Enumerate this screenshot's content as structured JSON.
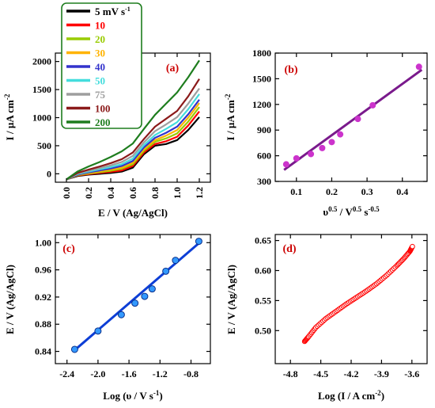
{
  "chart_data": [
    {
      "id": "a",
      "type": "line",
      "panel_label": "(a)",
      "xlabel": "E / V (Ag/AgCl)",
      "ylabel": "I / µA cm",
      "ylabel_sup": "-2",
      "xlim": [
        -0.1,
        1.3
      ],
      "ylim": [
        -150,
        2150
      ],
      "xticks": [
        "0.0",
        "0.2",
        "0.4",
        "0.6",
        "0.8",
        "1.0",
        "1.2"
      ],
      "yticks": [
        "0",
        "500",
        "1000",
        "1500",
        "2000"
      ],
      "legend": {
        "placement": "top-left",
        "first_unit": " mV s",
        "first_unit_sup": "-1"
      },
      "series": [
        {
          "name": "5",
          "color": "#000000",
          "x": [
            0.0,
            0.1,
            0.2,
            0.3,
            0.4,
            0.5,
            0.6,
            0.7,
            0.8,
            0.9,
            1.0,
            1.1,
            1.2
          ],
          "values": [
            -100,
            -40,
            -15,
            0,
            15,
            40,
            110,
            350,
            500,
            530,
            600,
            780,
            1010
          ]
        },
        {
          "name": "10",
          "color": "#ff0000",
          "x": [
            0.0,
            0.1,
            0.2,
            0.3,
            0.4,
            0.5,
            0.6,
            0.7,
            0.8,
            0.9,
            1.0,
            1.1,
            1.2
          ],
          "values": [
            -100,
            -30,
            -5,
            15,
            35,
            60,
            140,
            380,
            530,
            580,
            660,
            860,
            1110
          ]
        },
        {
          "name": "20",
          "color": "#99cc00",
          "x": [
            0.0,
            0.1,
            0.2,
            0.3,
            0.4,
            0.5,
            0.6,
            0.7,
            0.8,
            0.9,
            1.0,
            1.1,
            1.2
          ],
          "values": [
            -100,
            -25,
            5,
            30,
            55,
            90,
            170,
            410,
            570,
            630,
            720,
            930,
            1190
          ]
        },
        {
          "name": "30",
          "color": "#ffb300",
          "x": [
            0.0,
            0.1,
            0.2,
            0.3,
            0.4,
            0.5,
            0.6,
            0.7,
            0.8,
            0.9,
            1.0,
            1.1,
            1.2
          ],
          "values": [
            -100,
            -20,
            15,
            45,
            75,
            110,
            200,
            440,
            600,
            680,
            780,
            1000,
            1260
          ]
        },
        {
          "name": "40",
          "color": "#3333cc",
          "x": [
            0.0,
            0.1,
            0.2,
            0.3,
            0.4,
            0.5,
            0.6,
            0.7,
            0.8,
            0.9,
            1.0,
            1.1,
            1.2
          ],
          "values": [
            -100,
            -15,
            25,
            60,
            95,
            140,
            230,
            470,
            640,
            730,
            840,
            1060,
            1320
          ]
        },
        {
          "name": "50",
          "color": "#44dddd",
          "x": [
            0.0,
            0.1,
            0.2,
            0.3,
            0.4,
            0.5,
            0.6,
            0.7,
            0.8,
            0.9,
            1.0,
            1.1,
            1.2
          ],
          "values": [
            -100,
            -5,
            40,
            80,
            120,
            170,
            270,
            510,
            690,
            800,
            920,
            1150,
            1420
          ]
        },
        {
          "name": "75",
          "color": "#9e9e9e",
          "x": [
            0.0,
            0.1,
            0.2,
            0.3,
            0.4,
            0.5,
            0.6,
            0.7,
            0.8,
            0.9,
            1.0,
            1.1,
            1.2
          ],
          "values": [
            -100,
            5,
            55,
            100,
            150,
            210,
            320,
            560,
            760,
            880,
            1010,
            1250,
            1520
          ]
        },
        {
          "name": "100",
          "color": "#8b1a1a",
          "x": [
            0.0,
            0.1,
            0.2,
            0.3,
            0.4,
            0.5,
            0.6,
            0.7,
            0.8,
            0.9,
            1.0,
            1.1,
            1.2
          ],
          "values": [
            -100,
            15,
            75,
            130,
            190,
            260,
            380,
            620,
            840,
            980,
            1120,
            1380,
            1690
          ]
        },
        {
          "name": "200",
          "color": "#1e7d1e",
          "x": [
            0.0,
            0.1,
            0.2,
            0.3,
            0.4,
            0.5,
            0.6,
            0.7,
            0.8,
            0.9,
            1.0,
            1.1,
            1.2
          ],
          "values": [
            -100,
            40,
            130,
            210,
            300,
            400,
            540,
            800,
            1050,
            1250,
            1450,
            1720,
            2020
          ]
        }
      ]
    },
    {
      "id": "b",
      "type": "scatter",
      "panel_label": "(b)",
      "xlabel_main": "υ",
      "xlabel_sup1": "0.5",
      "xlabel_mid": " / V",
      "xlabel_sup2": "0.5",
      "xlabel_mid2": " s",
      "xlabel_sup3": "-0.5",
      "ylabel": "I / µA cm",
      "ylabel_sup": "-2",
      "xlim": [
        0.04,
        0.47
      ],
      "ylim": [
        300,
        1800
      ],
      "xticks": [
        "0.1",
        "0.2",
        "0.3",
        "0.4"
      ],
      "yticks": [
        "300",
        "600",
        "900",
        "1200",
        "1500",
        "1800"
      ],
      "points_color": "#cc33cc",
      "fit_color": "#7a1a8c",
      "points": [
        {
          "x": 0.071,
          "y": 500
        },
        {
          "x": 0.1,
          "y": 570
        },
        {
          "x": 0.141,
          "y": 620
        },
        {
          "x": 0.173,
          "y": 690
        },
        {
          "x": 0.2,
          "y": 760
        },
        {
          "x": 0.224,
          "y": 850
        },
        {
          "x": 0.274,
          "y": 1030
        },
        {
          "x": 0.316,
          "y": 1190
        },
        {
          "x": 0.447,
          "y": 1640
        }
      ],
      "fit": {
        "x": [
          0.065,
          0.455
        ],
        "y": [
          435,
          1605
        ]
      }
    },
    {
      "id": "c",
      "type": "scatter",
      "panel_label": "(c)",
      "xlabel": "Log (υ / V s",
      "xlabel_sup": "-1",
      "xlabel_end": ")",
      "ylabel": "E / V (Ag/AgCl)",
      "xlim": [
        -2.55,
        -0.55
      ],
      "ylim": [
        0.822,
        1.012
      ],
      "xticks": [
        "-2.4",
        "-2.0",
        "-1.6",
        "-1.2",
        "-0.8"
      ],
      "yticks": [
        "0.84",
        "0.88",
        "0.92",
        "0.96",
        "1.00"
      ],
      "points_color": "#3399ff",
      "fit_color": "#0d3ed6",
      "points": [
        {
          "x": -2.301,
          "y": 0.843
        },
        {
          "x": -2.0,
          "y": 0.87
        },
        {
          "x": -1.699,
          "y": 0.894
        },
        {
          "x": -1.523,
          "y": 0.911
        },
        {
          "x": -1.398,
          "y": 0.921
        },
        {
          "x": -1.301,
          "y": 0.932
        },
        {
          "x": -1.125,
          "y": 0.958
        },
        {
          "x": -1.0,
          "y": 0.974
        },
        {
          "x": -0.699,
          "y": 1.002
        }
      ],
      "fit": {
        "x": [
          -2.32,
          -0.69
        ],
        "y": [
          0.84,
          1.0
        ]
      }
    },
    {
      "id": "d",
      "type": "scatter",
      "panel_label": "(d)",
      "xlabel": "Log (I / A cm",
      "xlabel_sup": "-2",
      "xlabel_end": ")",
      "ylabel": "E / V (Ag/AgCl)",
      "xlim": [
        -4.95,
        -3.45
      ],
      "ylim": [
        0.445,
        0.66
      ],
      "xticks": [
        "-4.8",
        "-4.5",
        "-4.2",
        "-3.9",
        "-3.6"
      ],
      "yticks": [
        "0.50",
        "0.55",
        "0.60",
        "0.65"
      ],
      "points_color": "#ff0000",
      "curve": {
        "x": [
          -4.66,
          -4.62,
          -4.55,
          -4.45,
          -4.35,
          -4.25,
          -4.15,
          -4.05,
          -3.95,
          -3.85,
          -3.75,
          -3.68,
          -3.62,
          -3.595
        ],
        "y": [
          0.482,
          0.49,
          0.505,
          0.52,
          0.532,
          0.544,
          0.555,
          0.566,
          0.578,
          0.592,
          0.608,
          0.62,
          0.632,
          0.64
        ]
      }
    }
  ]
}
